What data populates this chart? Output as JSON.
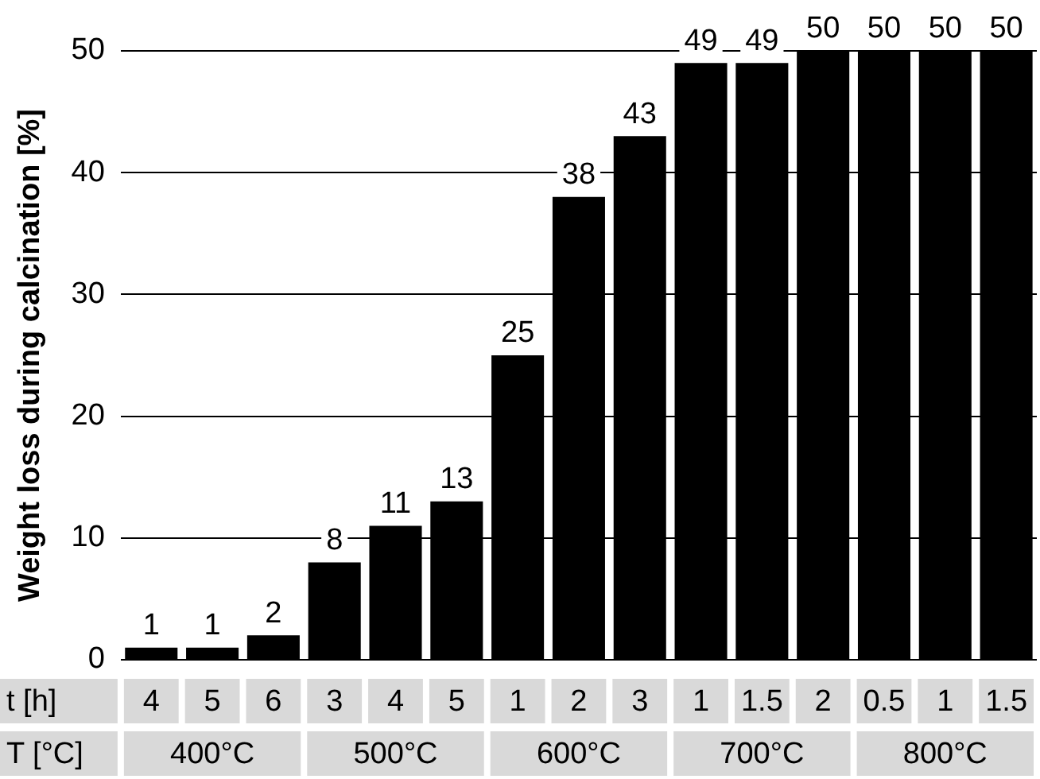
{
  "chart_data": {
    "type": "bar",
    "ylabel": "Weight loss during calcination [%]",
    "categories": [
      "4",
      "5",
      "6",
      "3",
      "4",
      "5",
      "1",
      "2",
      "3",
      "1",
      "1.5",
      "2",
      "0.5",
      "1",
      "1.5"
    ],
    "values": [
      1,
      1,
      2,
      8,
      11,
      13,
      25,
      38,
      43,
      49,
      49,
      50,
      50,
      50,
      50
    ],
    "color": "#000000",
    "ylim": [
      0,
      50
    ],
    "yticks": [
      0,
      10,
      20,
      30,
      40,
      50
    ],
    "grid": "y",
    "data_labels": true,
    "legend": false,
    "annotations": [
      "t [h]",
      "T [°C]",
      "400°C",
      "500°C",
      "600°C",
      "700°C",
      "800°C"
    ]
  }
}
